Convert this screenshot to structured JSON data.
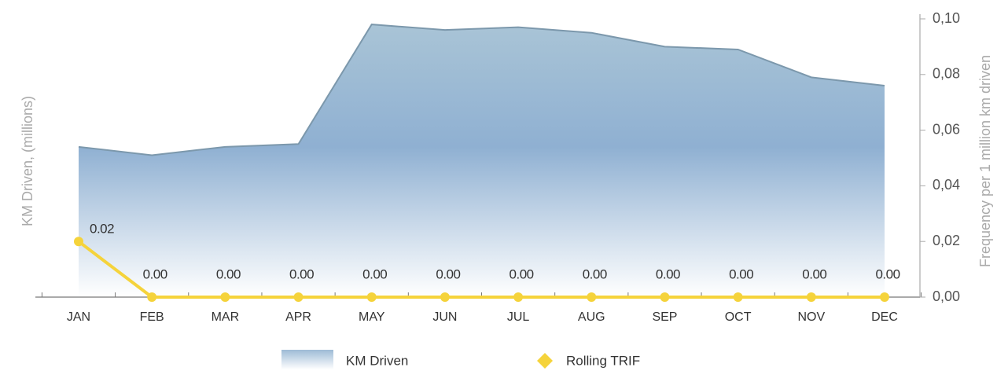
{
  "chart_data": {
    "type": "combo",
    "categories": [
      "JAN",
      "FEB",
      "MAR",
      "APR",
      "MAY",
      "JUN",
      "JUL",
      "AUG",
      "SEP",
      "OCT",
      "NOV",
      "DEC"
    ],
    "y_label": "KM Driven, (millions)",
    "y2_label": "Frequency per 1 million km driven",
    "y2lim": [
      0,
      0.1
    ],
    "y2ticks": [
      {
        "value": 0,
        "label": "0,00"
      },
      {
        "value": 0.02,
        "label": "0,02"
      },
      {
        "value": 0.04,
        "label": "0,04"
      },
      {
        "value": 0.06,
        "label": "0,06"
      },
      {
        "value": 0.08,
        "label": "0,08"
      },
      {
        "value": 0.1,
        "label": "0,10"
      }
    ],
    "series": [
      {
        "name": "KM Driven",
        "type": "area",
        "color": "#8fb0cc",
        "axis": "y2",
        "values": [
          0.054,
          0.051,
          0.054,
          0.055,
          0.098,
          0.096,
          0.097,
          0.095,
          0.09,
          0.089,
          0.079,
          0.076
        ]
      },
      {
        "name": "Rolling TRIF",
        "type": "line",
        "color": "#f5d33b",
        "axis": "y2",
        "values": [
          0.02,
          0,
          0,
          0,
          0,
          0,
          0,
          0,
          0,
          0,
          0,
          0
        ],
        "value_labels": [
          "0.02",
          "0.00",
          "0.00",
          "0.00",
          "0.00",
          "0.00",
          "0.00",
          "0.00",
          "0.00",
          "0.00",
          "0.00",
          "0.00"
        ]
      }
    ],
    "legend": "bottom"
  }
}
